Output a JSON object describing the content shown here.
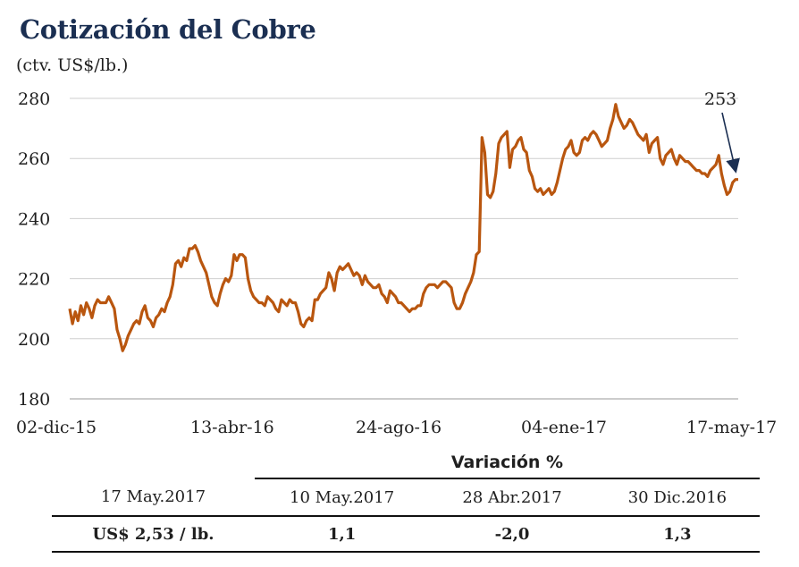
{
  "header": {
    "title": "Cotización del Cobre",
    "subtitle": "(ctv. US$/lb.)"
  },
  "chart_data": {
    "type": "line",
    "ylim": [
      180,
      280
    ],
    "y_ticks": [
      "280",
      "260",
      "240",
      "220",
      "200",
      "180"
    ],
    "x_ticks": [
      "02-dic-15",
      "13-abr-16",
      "24-ago-16",
      "04-ene-17",
      "17-may-17"
    ],
    "grid": true,
    "colors": {
      "line": "#b9560f",
      "grid": "#cfcfcf",
      "arrow": "#1b2f52"
    },
    "annotation": {
      "label": "253",
      "value": 253
    },
    "series": [
      {
        "values": [
          210,
          205,
          209,
          206,
          211,
          208,
          212,
          210,
          207,
          211,
          213,
          212,
          212,
          212,
          214,
          212,
          210,
          203,
          200,
          196,
          198,
          201,
          203,
          205,
          206,
          205,
          209,
          211,
          207,
          206,
          204,
          207,
          208,
          210,
          209,
          212,
          214,
          218,
          225,
          226,
          224,
          227,
          226,
          230,
          230,
          231,
          229,
          226,
          224,
          222,
          218,
          214,
          212,
          211,
          215,
          218,
          220,
          219,
          221,
          228,
          226,
          228,
          228,
          227,
          220,
          216,
          214,
          213,
          212,
          212,
          211,
          214,
          213,
          212,
          210,
          209,
          213,
          212,
          211,
          213,
          212,
          212,
          209,
          205,
          204,
          206,
          207,
          206,
          213,
          213,
          215,
          216,
          217,
          222,
          220,
          216,
          222,
          224,
          223,
          224,
          225,
          223,
          221,
          222,
          221,
          218,
          221,
          219,
          218,
          217,
          217,
          218,
          215,
          214,
          212,
          216,
          215,
          214,
          212,
          212,
          211,
          210,
          209,
          210,
          210,
          211,
          211,
          215,
          217,
          218,
          218,
          218,
          217,
          218,
          219,
          219,
          218,
          217,
          212,
          210,
          210,
          212,
          215,
          217,
          219,
          222,
          228,
          229,
          267,
          262,
          248,
          247,
          249,
          255,
          265,
          267,
          268,
          269,
          257,
          263,
          264,
          266,
          267,
          263,
          262,
          256,
          254,
          250,
          249,
          250,
          248,
          249,
          250,
          248,
          249,
          252,
          256,
          260,
          263,
          264,
          266,
          262,
          261,
          262,
          266,
          267,
          266,
          268,
          269,
          268,
          266,
          264,
          265,
          266,
          270,
          273,
          278,
          274,
          272,
          270,
          271,
          273,
          272,
          270,
          268,
          267,
          266,
          268,
          262,
          265,
          266,
          267,
          260,
          258,
          261,
          262,
          263,
          260,
          258,
          261,
          260,
          259,
          259,
          258,
          257,
          256,
          256,
          255,
          255,
          254,
          256,
          257,
          258,
          261,
          255,
          251,
          248,
          249,
          252,
          253,
          253
        ]
      }
    ]
  },
  "variation_table": {
    "title": "Variación %",
    "current_date": "17 May.2017",
    "current_value": "US$ 2,53 / lb.",
    "columns": [
      {
        "date": "10 May.2017",
        "value": "1,1"
      },
      {
        "date": "28 Abr.2017",
        "value": "-2,0"
      },
      {
        "date": "30 Dic.2016",
        "value": "1,3"
      }
    ]
  }
}
